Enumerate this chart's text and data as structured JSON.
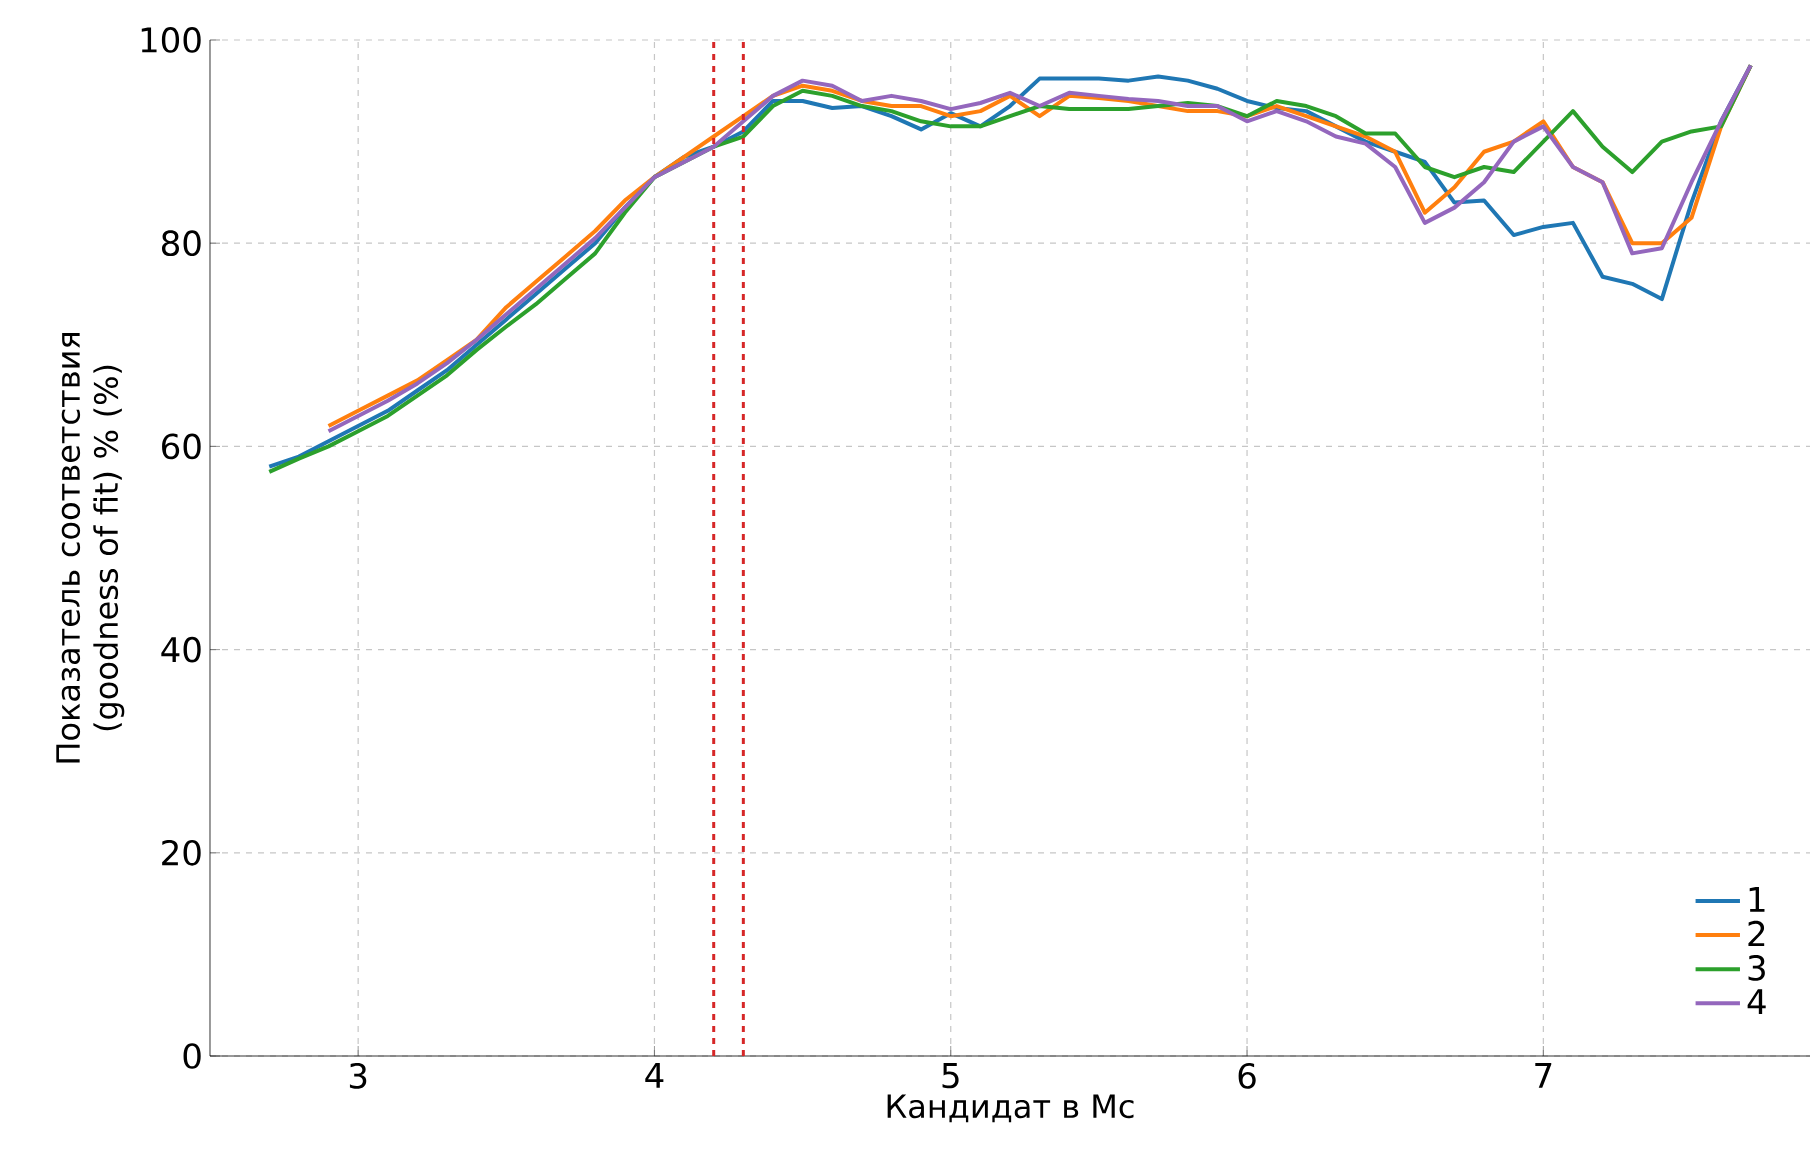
{
  "chart_data": {
    "type": "line",
    "xlabel": "Кандидат в Mc",
    "ylabel": "Показатель соответствия (goodness of fit) % (%)",
    "x": [
      2.7,
      2.8,
      2.9,
      3.0,
      3.1,
      3.2,
      3.3,
      3.4,
      3.5,
      3.6,
      3.7,
      3.8,
      3.9,
      4.0,
      4.1,
      4.2,
      4.3,
      4.4,
      4.5,
      4.6,
      4.7,
      4.8,
      4.9,
      5.0,
      5.1,
      5.2,
      5.3,
      5.4,
      5.5,
      5.6,
      5.7,
      5.8,
      5.9,
      6.0,
      6.1,
      6.2,
      6.3,
      6.4,
      6.5,
      6.6,
      6.7,
      6.8,
      6.9,
      7.0,
      7.1,
      7.2,
      7.3,
      7.4,
      7.5,
      7.6,
      7.7
    ],
    "series": [
      {
        "name": "1",
        "color": "#1f77b4",
        "values": [
          58,
          59,
          60.5,
          62,
          63.5,
          65.5,
          67.5,
          70,
          72.5,
          75,
          77.5,
          80,
          83.5,
          86.5,
          88.5,
          89.5,
          91,
          94,
          94,
          93.3,
          93.5,
          92.5,
          91.2,
          92.8,
          91.5,
          93.5,
          96.2,
          96.2,
          96.2,
          96,
          96.4,
          96,
          95.2,
          94,
          93.3,
          93,
          91.5,
          90,
          89,
          88,
          84,
          84.2,
          80.8,
          81.6,
          82,
          76.7,
          76,
          74.5,
          84,
          92,
          97.5
        ]
      },
      {
        "name": "2",
        "color": "#ff7f0e",
        "values": [
          null,
          null,
          62,
          63.5,
          65,
          66.5,
          68.5,
          70.5,
          73.7,
          76.2,
          78.7,
          81.2,
          84.2,
          86.5,
          88.5,
          90.5,
          92.5,
          94.5,
          95.5,
          95,
          94,
          93.5,
          93.5,
          92.5,
          93,
          94.5,
          92.5,
          94.5,
          94.3,
          94,
          93.5,
          93,
          93,
          92.5,
          93.5,
          92.5,
          91.5,
          90.5,
          89,
          83,
          85.5,
          89,
          90,
          92,
          87.5,
          86,
          80,
          80,
          82.5,
          91.5,
          97.5
        ]
      },
      {
        "name": "3",
        "color": "#2ca02c",
        "values": [
          57.5,
          58.8,
          60,
          61.5,
          63,
          65,
          67,
          69.5,
          71.8,
          74,
          76.5,
          79,
          83,
          86.5,
          88,
          89.5,
          90.5,
          93.5,
          95,
          94.5,
          93.5,
          93,
          92,
          91.5,
          91.5,
          92.5,
          93.5,
          93.2,
          93.2,
          93.2,
          93.5,
          93.8,
          93.5,
          92.5,
          94,
          93.5,
          92.5,
          90.8,
          90.8,
          87.5,
          86.5,
          87.5,
          87,
          90,
          93,
          89.5,
          87,
          90,
          91,
          91.5,
          97.5
        ]
      },
      {
        "name": "4",
        "color": "#9467bd",
        "values": [
          null,
          null,
          61.5,
          63,
          64.5,
          66.2,
          68.2,
          70.5,
          73,
          75.5,
          78,
          80.5,
          83.5,
          86.5,
          88,
          89.5,
          92,
          94.5,
          96,
          95.5,
          94,
          94.5,
          94,
          93.2,
          93.8,
          94.8,
          93.5,
          94.8,
          94.5,
          94.2,
          94,
          93.5,
          93.5,
          92,
          93,
          92,
          90.5,
          89.8,
          87.5,
          82,
          83.5,
          86,
          90,
          91.5,
          87.5,
          86,
          79,
          79.5,
          86,
          92,
          97.5
        ]
      }
    ],
    "xlim": [
      2.5,
      7.9
    ],
    "ylim": [
      0,
      100
    ],
    "xticks": [
      3,
      4,
      5,
      6,
      7
    ],
    "yticks": [
      0,
      20,
      40,
      60,
      80,
      100
    ],
    "ref_lines": [
      {
        "axis": "x",
        "value": 4.2,
        "color": "#d62728",
        "line_style": "dashed"
      },
      {
        "axis": "x",
        "value": 4.3,
        "color": "#d62728",
        "line_style": "dashed"
      }
    ],
    "grid": true,
    "legend": "bottom right",
    "marker": "none",
    "line_style": "solid"
  }
}
